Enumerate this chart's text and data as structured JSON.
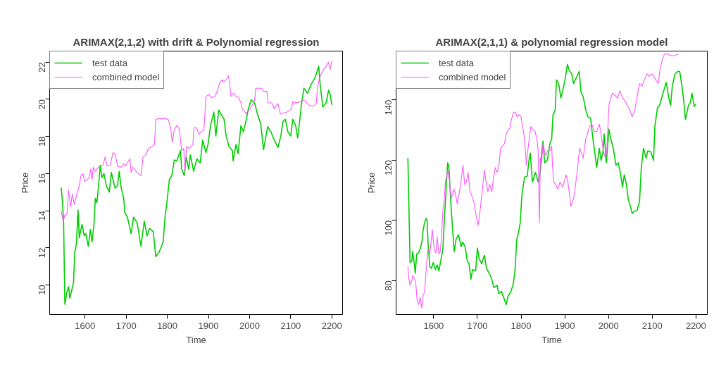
{
  "chart_data": [
    {
      "type": "line",
      "title": "ARIMAX(2,1,2) with drift & Polynomial regression",
      "xlabel": "Time",
      "ylabel": "Price",
      "xlim": [
        1514,
        2226
      ],
      "ylim": [
        8.4,
        22.6
      ],
      "xticks": [
        1600,
        1700,
        1800,
        1900,
        2000,
        2100,
        2200
      ],
      "yticks": [
        10,
        12,
        14,
        16,
        18,
        20,
        22
      ],
      "grid": false,
      "legend": "top left",
      "series": [
        {
          "name": "test data",
          "color": "#00cd00",
          "x": [
            1542,
            1545,
            1548,
            1551,
            1556,
            1560,
            1563,
            1568,
            1572,
            1575,
            1579,
            1583,
            1586,
            1590,
            1593,
            1598,
            1602,
            1608,
            1613,
            1617,
            1622,
            1625,
            1629,
            1632,
            1637,
            1641,
            1646,
            1652,
            1659,
            1664,
            1668,
            1673,
            1679,
            1683,
            1688,
            1694,
            1697,
            1703,
            1712,
            1718,
            1727,
            1736,
            1744,
            1751,
            1757,
            1766,
            1772,
            1780,
            1790,
            1794,
            1799,
            1805,
            1811,
            1817,
            1823,
            1832,
            1835,
            1841,
            1846,
            1852,
            1856,
            1864,
            1872,
            1880,
            1886,
            1894,
            1899,
            1905,
            1913,
            1918,
            1925,
            1932,
            1938,
            1943,
            1950,
            1958,
            1960,
            1967,
            1972,
            1979,
            1985,
            1991,
            1997,
            2004,
            2012,
            2020,
            2027,
            2034,
            2044,
            2052,
            2060,
            2069,
            2076,
            2081,
            2087,
            2093,
            2100,
            2105,
            2112,
            2117,
            2126,
            2132,
            2141,
            2150,
            2159,
            2168,
            2172,
            2178,
            2186,
            2192,
            2196,
            2200
          ],
          "values": [
            15.24,
            14.55,
            13.32,
            8.95,
            9.62,
            9.9,
            9.28,
            9.73,
            10.12,
            11.75,
            12.2,
            14.05,
            12.53,
            12.98,
            13.26,
            12.64,
            12.76,
            12.08,
            12.98,
            12.31,
            13.32,
            14.66,
            14.44,
            15.11,
            16.45,
            15.78,
            16.0,
            15.33,
            15.0,
            16.06,
            15.67,
            15.22,
            15.33,
            16.12,
            15.22,
            14.66,
            13.88,
            13.65,
            12.76,
            13.65,
            13.32,
            12.08,
            13.43,
            12.64,
            13.04,
            12.87,
            11.52,
            11.75,
            12.31,
            13.54,
            14.44,
            15.67,
            15.89,
            16.73,
            16.68,
            17.24,
            16.23,
            15.89,
            16.9,
            16.23,
            17.01,
            16.12,
            16.79,
            16.57,
            17.8,
            17.13,
            17.57,
            18.58,
            19.31,
            18.02,
            19.42,
            19.14,
            18.92,
            18.02,
            17.46,
            17.24,
            16.68,
            17.57,
            17.07,
            18.58,
            18.25,
            18.81,
            19.48,
            19.98,
            19.81,
            19.14,
            18.69,
            17.29,
            18.53,
            18.25,
            17.8,
            17.41,
            18.02,
            18.81,
            18.92,
            18.25,
            18.02,
            18.92,
            18.58,
            17.91,
            19.7,
            20.6,
            20.32,
            20.82,
            21.16,
            21.78,
            20.71,
            19.59,
            19.81,
            20.49,
            20.26,
            19.7
          ]
        },
        {
          "name": "combined model",
          "color": "#ff55ff",
          "x": [
            1542,
            1547,
            1551,
            1556,
            1560,
            1565,
            1569,
            1574,
            1580,
            1586,
            1590,
            1595,
            1599,
            1605,
            1610,
            1614,
            1617,
            1620,
            1625,
            1631,
            1638,
            1644,
            1649,
            1653,
            1661,
            1668,
            1674,
            1679,
            1688,
            1694,
            1698,
            1703,
            1709,
            1712,
            1716,
            1724,
            1730,
            1736,
            1741,
            1748,
            1754,
            1763,
            1769,
            1772,
            1781,
            1787,
            1793,
            1802,
            1808,
            1812,
            1817,
            1823,
            1829,
            1835,
            1840,
            1843,
            1847,
            1853,
            1862,
            1865,
            1871,
            1877,
            1883,
            1889,
            1894,
            1901,
            1907,
            1916,
            1922,
            1928,
            1934,
            1938,
            1943,
            1949,
            1955,
            1961,
            1967,
            1973,
            1979,
            1982,
            1991,
            1997,
            2006,
            2012,
            2015,
            2022,
            2030,
            2034,
            2042,
            2045,
            2054,
            2060,
            2066,
            2069,
            2075,
            2081,
            2090,
            2096,
            2102,
            2105,
            2114,
            2123,
            2129,
            2135,
            2141,
            2147,
            2156,
            2162,
            2165,
            2170,
            2177,
            2186,
            2192,
            2196,
            2200
          ],
          "values": [
            13.99,
            13.43,
            13.77,
            13.77,
            15.11,
            14.21,
            14.89,
            14.33,
            14.89,
            15.33,
            15.89,
            16.0,
            15.56,
            15.67,
            15.78,
            16.23,
            15.67,
            16.34,
            16.12,
            16.29,
            16.45,
            16.45,
            16.9,
            16.45,
            16.45,
            17.13,
            17.01,
            16.4,
            16.34,
            16.51,
            16.4,
            16.57,
            16.79,
            16.06,
            16.34,
            16.12,
            16.0,
            15.89,
            16.9,
            17.01,
            17.35,
            17.46,
            17.57,
            18.92,
            18.97,
            18.94,
            18.97,
            18.92,
            18.47,
            17.69,
            18.36,
            18.58,
            18.41,
            17.24,
            17.35,
            16.12,
            17.46,
            17.35,
            17.57,
            18.47,
            18.47,
            18.13,
            18.25,
            18.36,
            20.15,
            20.26,
            20.1,
            20.15,
            20.49,
            20.94,
            21.05,
            20.94,
            21.05,
            21.27,
            20.15,
            20.32,
            20.15,
            20.1,
            19.81,
            19.48,
            19.25,
            19.37,
            19.65,
            19.93,
            20.6,
            20.6,
            20.6,
            20.43,
            20.43,
            19.81,
            19.81,
            19.48,
            19.7,
            19.76,
            19.2,
            19.25,
            19.31,
            19.37,
            19.48,
            19.87,
            19.81,
            19.87,
            19.93,
            19.93,
            19.76,
            19.65,
            19.65,
            19.76,
            20.6,
            21.16,
            21.5,
            21.78,
            22.0,
            21.61,
            22.06
          ]
        }
      ]
    },
    {
      "type": "line",
      "title": "ARIMAX(2,1,1) & polynomial regression model",
      "xlabel": "Time",
      "ylabel": "Price",
      "xlim": [
        1514,
        2226
      ],
      "ylim": [
        68.7,
        156.2
      ],
      "xticks": [
        1600,
        1700,
        1800,
        1900,
        2000,
        2100,
        2200
      ],
      "yticks": [
        80,
        100,
        120,
        140
      ],
      "grid": false,
      "legend": "top left",
      "series": [
        {
          "name": "test data",
          "color": "#00cd00",
          "x": [
            1541,
            1543,
            1546,
            1550,
            1552,
            1555,
            1558,
            1561,
            1565,
            1569,
            1573,
            1576,
            1579,
            1583,
            1585,
            1587,
            1591,
            1595,
            1599,
            1604,
            1608,
            1612,
            1616,
            1621,
            1625,
            1630,
            1632,
            1635,
            1639,
            1643,
            1647,
            1651,
            1657,
            1663,
            1666,
            1672,
            1677,
            1681,
            1685,
            1689,
            1696,
            1700,
            1704,
            1710,
            1716,
            1721,
            1727,
            1732,
            1738,
            1745,
            1749,
            1755,
            1760,
            1766,
            1770,
            1776,
            1782,
            1786,
            1790,
            1794,
            1798,
            1802,
            1808,
            1814,
            1818,
            1821,
            1826,
            1833,
            1839,
            1844,
            1847,
            1850,
            1854,
            1860,
            1866,
            1870,
            1873,
            1878,
            1881,
            1886,
            1891,
            1895,
            1900,
            1906,
            1910,
            1916,
            1920,
            1925,
            1933,
            1937,
            1942,
            1948,
            1953,
            1959,
            1965,
            1968,
            1973,
            1979,
            1983,
            1987,
            1990,
            1995,
            2001,
            2005,
            2011,
            2017,
            2022,
            2026,
            2032,
            2036,
            2041,
            2045,
            2050,
            2054,
            2060,
            2065,
            2071,
            2075,
            2080,
            2086,
            2090,
            2097,
            2103,
            2106,
            2112,
            2117,
            2123,
            2128,
            2132,
            2138,
            2142,
            2146,
            2152,
            2158,
            2163,
            2168,
            2172,
            2176,
            2183,
            2187,
            2191,
            2196,
            2200
          ],
          "values": [
            120.7,
            107.1,
            86.0,
            86.4,
            89.6,
            86.4,
            82.4,
            88.8,
            89.2,
            90.4,
            92.8,
            96.8,
            99.1,
            100.7,
            99.9,
            92.8,
            84.8,
            84.0,
            86.0,
            83.6,
            85.2,
            83.2,
            86.4,
            90.4,
            101.5,
            114.3,
            119.1,
            117.5,
            106.3,
            97.6,
            89.6,
            93.6,
            95.2,
            91.2,
            92.8,
            91.2,
            86.4,
            85.6,
            80.4,
            83.6,
            83.2,
            90.8,
            87.2,
            85.6,
            88.4,
            84.0,
            82.4,
            80.8,
            77.6,
            78.4,
            75.6,
            76.4,
            74.4,
            72.0,
            74.8,
            76.0,
            78.8,
            83.2,
            93.6,
            96.0,
            99.1,
            108.7,
            114.3,
            114.7,
            119.9,
            122.3,
            112.7,
            115.9,
            112.7,
            115.9,
            122.3,
            126.3,
            119.1,
            119.9,
            125.5,
            127.1,
            135.0,
            136.6,
            146.6,
            145.4,
            140.6,
            143.0,
            146.2,
            151.8,
            149.8,
            148.6,
            145.4,
            147.0,
            149.4,
            142.6,
            141.0,
            136.6,
            134.3,
            133.9,
            126.3,
            123.1,
            117.5,
            123.9,
            119.9,
            122.3,
            128.7,
            119.1,
            130.3,
            127.1,
            123.9,
            118.3,
            119.1,
            116.7,
            111.1,
            115.1,
            111.9,
            107.1,
            104.7,
            102.3,
            103.1,
            103.1,
            106.3,
            117.5,
            123.9,
            120.7,
            123.1,
            122.7,
            119.9,
            131.1,
            137.4,
            138.2,
            141.4,
            143.8,
            145.8,
            140.6,
            138.2,
            144.6,
            148.6,
            149.4,
            149.4,
            144.6,
            139.8,
            133.5,
            138.2,
            139.0,
            142.2,
            137.8,
            138.6
          ]
        },
        {
          "name": "combined model",
          "color": "#ff55ff",
          "x": [
            1541,
            1543,
            1546,
            1550,
            1552,
            1556,
            1559,
            1562,
            1566,
            1569,
            1573,
            1576,
            1579,
            1583,
            1587,
            1591,
            1594,
            1597,
            1601,
            1605,
            1608,
            1612,
            1615,
            1618,
            1621,
            1624,
            1627,
            1632,
            1636,
            1640,
            1646,
            1650,
            1654,
            1659,
            1663,
            1667,
            1671,
            1675,
            1679,
            1683,
            1688,
            1693,
            1698,
            1702,
            1706,
            1711,
            1716,
            1720,
            1724,
            1728,
            1733,
            1737,
            1741,
            1745,
            1749,
            1753,
            1758,
            1762,
            1766,
            1771,
            1774,
            1778,
            1783,
            1787,
            1791,
            1795,
            1800,
            1804,
            1808,
            1812,
            1816,
            1822,
            1826,
            1832,
            1836,
            1839,
            1842,
            1844,
            1847,
            1850,
            1856,
            1861,
            1867,
            1870,
            1872,
            1875,
            1879,
            1884,
            1889,
            1895,
            1900,
            1903,
            1907,
            1910,
            1914,
            1920,
            1924,
            1928,
            1934,
            1938,
            1942,
            1948,
            1952,
            1956,
            1962,
            1967,
            1973,
            1979,
            1983,
            1988,
            1993,
            1996,
            2001,
            2005,
            2009,
            2015,
            2021,
            2026,
            2032,
            2037,
            2043,
            2049,
            2054,
            2060,
            2065,
            2071,
            2077,
            2082,
            2088,
            2093,
            2099,
            2104,
            2110,
            2114,
            2117,
            2123,
            2128,
            2135,
            2141,
            2146,
            2152,
            2160
          ],
          "values": [
            84.8,
            80.8,
            78.4,
            80.0,
            81.6,
            80.8,
            79.2,
            73.6,
            72.0,
            74.4,
            70.8,
            75.2,
            76.0,
            84.0,
            90.4,
            88.8,
            92.8,
            96.8,
            90.4,
            89.2,
            94.4,
            88.8,
            89.6,
            94.4,
            103.1,
            106.3,
            112.7,
            116.7,
            113.5,
            107.1,
            110.3,
            108.7,
            105.5,
            109.5,
            113.5,
            118.3,
            111.9,
            112.7,
            115.9,
            109.5,
            107.9,
            105.5,
            100.7,
            98.4,
            103.1,
            109.5,
            116.7,
            112.7,
            109.5,
            111.9,
            109.5,
            114.3,
            117.5,
            115.9,
            117.5,
            123.9,
            124.7,
            125.5,
            128.7,
            130.3,
            130.3,
            133.5,
            135.9,
            135.9,
            134.3,
            135.1,
            134.3,
            130.7,
            127.1,
            118.3,
            123.9,
            131.1,
            130.3,
            129.5,
            127.1,
            123.1,
            99.1,
            120.7,
            119.1,
            125.5,
            121.5,
            123.1,
            123.1,
            124.7,
            117.5,
            112.7,
            111.9,
            110.3,
            112.7,
            111.1,
            113.5,
            115.1,
            112.7,
            109.5,
            104.7,
            107.1,
            111.1,
            115.9,
            123.9,
            122.3,
            120.7,
            127.1,
            128.7,
            131.1,
            131.9,
            129.5,
            129.5,
            131.9,
            128.7,
            123.1,
            120.7,
            123.1,
            138.2,
            140.6,
            142.2,
            141.4,
            140.6,
            143.0,
            140.6,
            139.8,
            138.2,
            136.6,
            134.3,
            136.6,
            140.6,
            145.4,
            144.6,
            146.6,
            148.6,
            147.8,
            148.6,
            147.8,
            146.2,
            145.4,
            149.4,
            153.4,
            155.2,
            155.2,
            154.8,
            154.6,
            154.8,
            155.2
          ]
        }
      ]
    }
  ]
}
